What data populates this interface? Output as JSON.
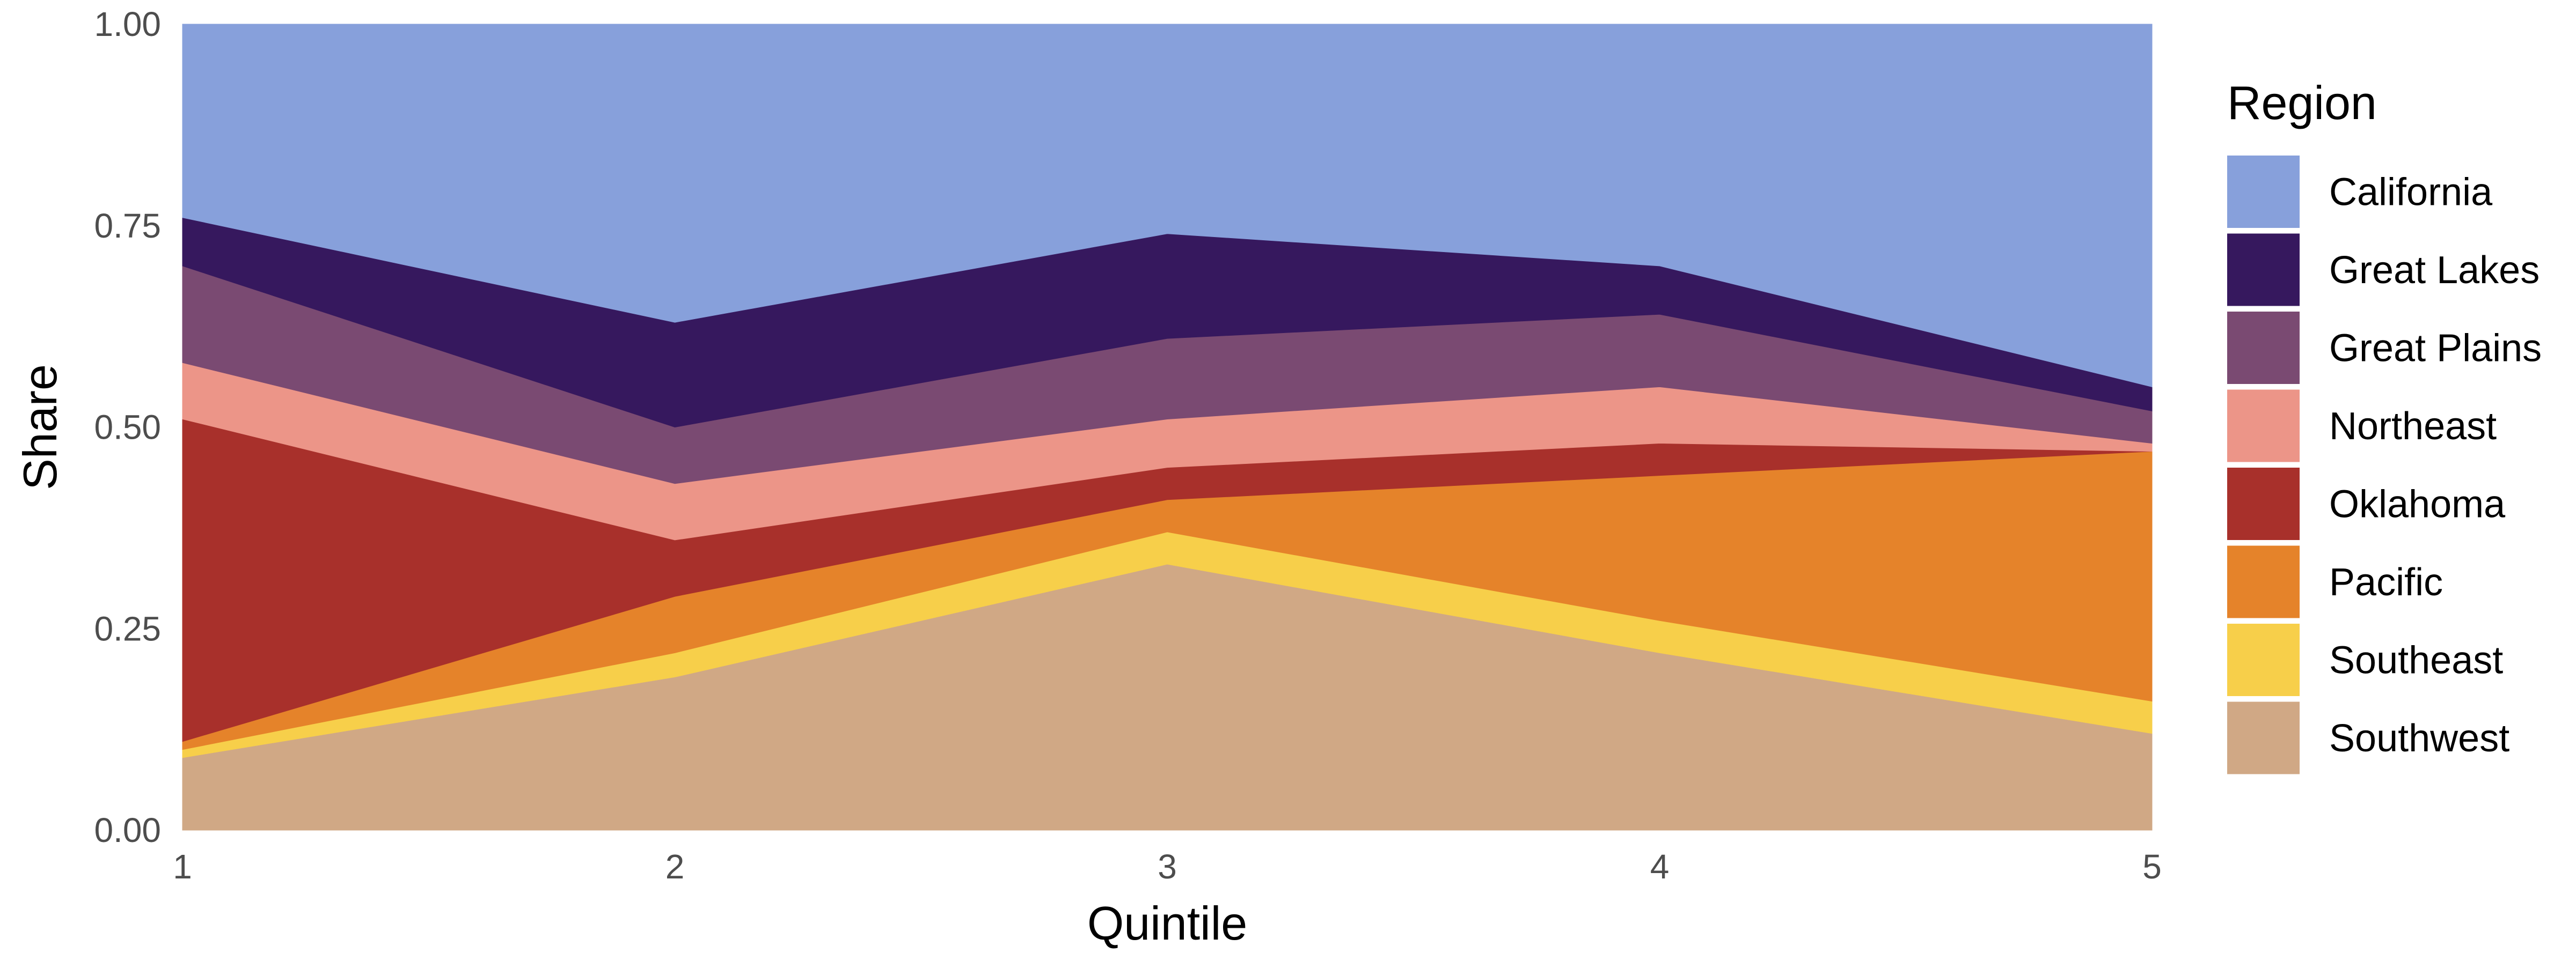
{
  "chart_data": {
    "type": "area",
    "stacked": true,
    "x": [
      1,
      2,
      3,
      4,
      5
    ],
    "xlabel": "Quintile",
    "ylabel": "Share",
    "xlim": [
      1,
      5
    ],
    "ylim": [
      0,
      1
    ],
    "xticks": [
      "1",
      "2",
      "3",
      "4",
      "5"
    ],
    "yticks": [
      "0.00",
      "0.25",
      "0.50",
      "0.75",
      "1.00"
    ],
    "grid": false,
    "legend": {
      "title": "Region",
      "position": "right"
    },
    "series": [
      {
        "name": "Southwest",
        "color": "#D0A885",
        "values": [
          0.09,
          0.19,
          0.33,
          0.22,
          0.12
        ]
      },
      {
        "name": "Southeast",
        "color": "#F7CF4A",
        "values": [
          0.01,
          0.03,
          0.04,
          0.04,
          0.04
        ]
      },
      {
        "name": "Pacific",
        "color": "#E5832A",
        "values": [
          0.01,
          0.07,
          0.04,
          0.18,
          0.31
        ]
      },
      {
        "name": "Oklahoma",
        "color": "#A8302B",
        "values": [
          0.4,
          0.07,
          0.04,
          0.04,
          0.0
        ]
      },
      {
        "name": "Northeast",
        "color": "#EC9588",
        "values": [
          0.07,
          0.07,
          0.06,
          0.07,
          0.01
        ]
      },
      {
        "name": "Great Plains",
        "color": "#7A4A72",
        "values": [
          0.12,
          0.07,
          0.1,
          0.09,
          0.04
        ]
      },
      {
        "name": "Great Lakes",
        "color": "#36185E",
        "values": [
          0.06,
          0.13,
          0.13,
          0.06,
          0.03
        ]
      },
      {
        "name": "California",
        "color": "#87A0DB",
        "values": [
          0.24,
          0.37,
          0.26,
          0.3,
          0.45
        ]
      }
    ],
    "legend_order": [
      "California",
      "Great Lakes",
      "Great Plains",
      "Northeast",
      "Oklahoma",
      "Pacific",
      "Southeast",
      "Southwest"
    ]
  }
}
